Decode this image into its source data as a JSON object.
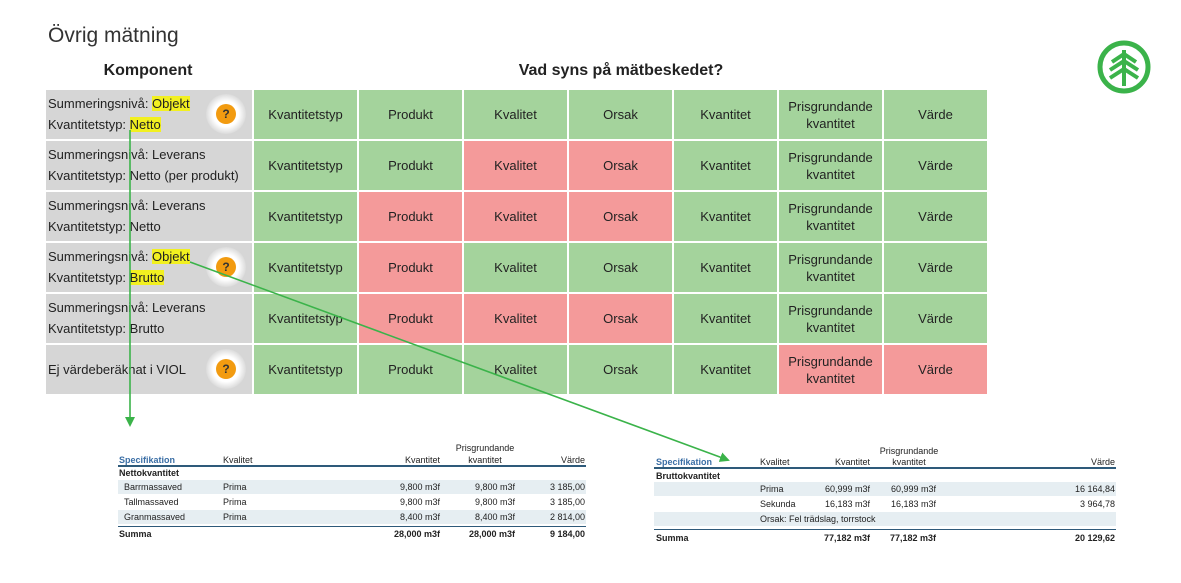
{
  "title": "Övrig mätning",
  "komponent_heading": "Komponent",
  "vad_heading": "Vad syns på mätbeskedet?",
  "rows": [
    {
      "l1_pre": "Summeringsnivå: ",
      "l1_hl": "Objekt",
      "l2_pre": "Kvantitetstyp: ",
      "l2_hl": "Netto",
      "badge": "?",
      "cells": [
        "Kvantitetstyp",
        "Produkt",
        "Kvalitet",
        "Orsak",
        "Kvantitet",
        "Prisgrundande kvantitet",
        "Värde"
      ]
    },
    {
      "l1": "Summeringsnivå: Leverans",
      "l2": "Kvantitetstyp: Netto (per produkt)",
      "cells": [
        "Kvantitetstyp",
        "Produkt",
        "Kvalitet",
        "Orsak",
        "Kvantitet",
        "Prisgrundande kvantitet",
        "Värde"
      ]
    },
    {
      "l1": "Summeringsnivå: Leverans",
      "l2": "Kvantitetstyp: Netto",
      "cells": [
        "Kvantitetstyp",
        "Produkt",
        "Kvalitet",
        "Orsak",
        "Kvantitet",
        "Prisgrundande kvantitet",
        "Värde"
      ]
    },
    {
      "l1_pre": "Summeringsnivå: ",
      "l1_hl": "Objekt",
      "l2_pre": "Kvantitetstyp: ",
      "l2_hl": "Brutto",
      "badge": "?",
      "cells": [
        "Kvantitetstyp",
        "Produkt",
        "Kvalitet",
        "Orsak",
        "Kvantitet",
        "Prisgrundande kvantitet",
        "Värde"
      ]
    },
    {
      "l1": "Summeringsnivå: Leverans",
      "l2": "Kvantitetstyp: Brutto",
      "cells": [
        "Kvantitetstyp",
        "Produkt",
        "Kvalitet",
        "Orsak",
        "Kvantitet",
        "Prisgrundande kvantitet",
        "Värde"
      ]
    },
    {
      "l0": "Ej värdeberäknat i VIOL",
      "badge": "?",
      "cells": [
        "Kvantitetstyp",
        "Produkt",
        "Kvalitet",
        "Orsak",
        "Kvantitet",
        "Prisgrundande kvantitet",
        "Värde"
      ]
    }
  ],
  "colors": {
    "green": "#a4d39c",
    "red": "#f49a9a",
    "component_bg": "#d6d6d6",
    "highlight": "#f2f020",
    "badge": "#f29b10",
    "arrow": "#3bb34a",
    "logo": "#3bb34a"
  },
  "netto_spec": {
    "headers": {
      "spec": "Specifikation",
      "kvalitet": "Kvalitet",
      "kvantitet": "Kvantitet",
      "pris_line1": "Prisgrundande",
      "pris_line2": "kvantitet",
      "varde": "Värde"
    },
    "group": "Nettokvantitet",
    "rows": [
      {
        "name": "Barrmassaved",
        "kvalitet": "Prima",
        "kvantitet": "9,800 m3f",
        "pris": "9,800 m3f",
        "varde": "3 185,00"
      },
      {
        "name": "Tallmassaved",
        "kvalitet": "Prima",
        "kvantitet": "9,800 m3f",
        "pris": "9,800 m3f",
        "varde": "3 185,00"
      },
      {
        "name": "Granmassaved",
        "kvalitet": "Prima",
        "kvantitet": "8,400 m3f",
        "pris": "8,400 m3f",
        "varde": "2 814,00"
      }
    ],
    "summa": {
      "label": "Summa",
      "kvantitet": "28,000 m3f",
      "pris": "28,000 m3f",
      "varde": "9 184,00"
    }
  },
  "brutto_spec": {
    "headers": {
      "spec": "Specifikation",
      "kvalitet": "Kvalitet",
      "kvantitet": "Kvantitet",
      "pris_line1": "Prisgrundande",
      "pris_line2": "kvantitet",
      "varde": "Värde"
    },
    "group": "Bruttokvantitet",
    "rows": [
      {
        "kvalitet": "Prima",
        "kvantitet": "60,999 m3f",
        "pris": "60,999 m3f",
        "varde": "16 164,84"
      },
      {
        "kvalitet": "Sekunda",
        "kvantitet": "16,183 m3f",
        "pris": "16,183 m3f",
        "varde": "3 964,78"
      }
    ],
    "orsak": "Orsak: Fel trädslag, torrstock",
    "summa": {
      "label": "Summa",
      "kvantitet": "77,182 m3f",
      "pris": "77,182 m3f",
      "varde": "20 129,62"
    }
  }
}
